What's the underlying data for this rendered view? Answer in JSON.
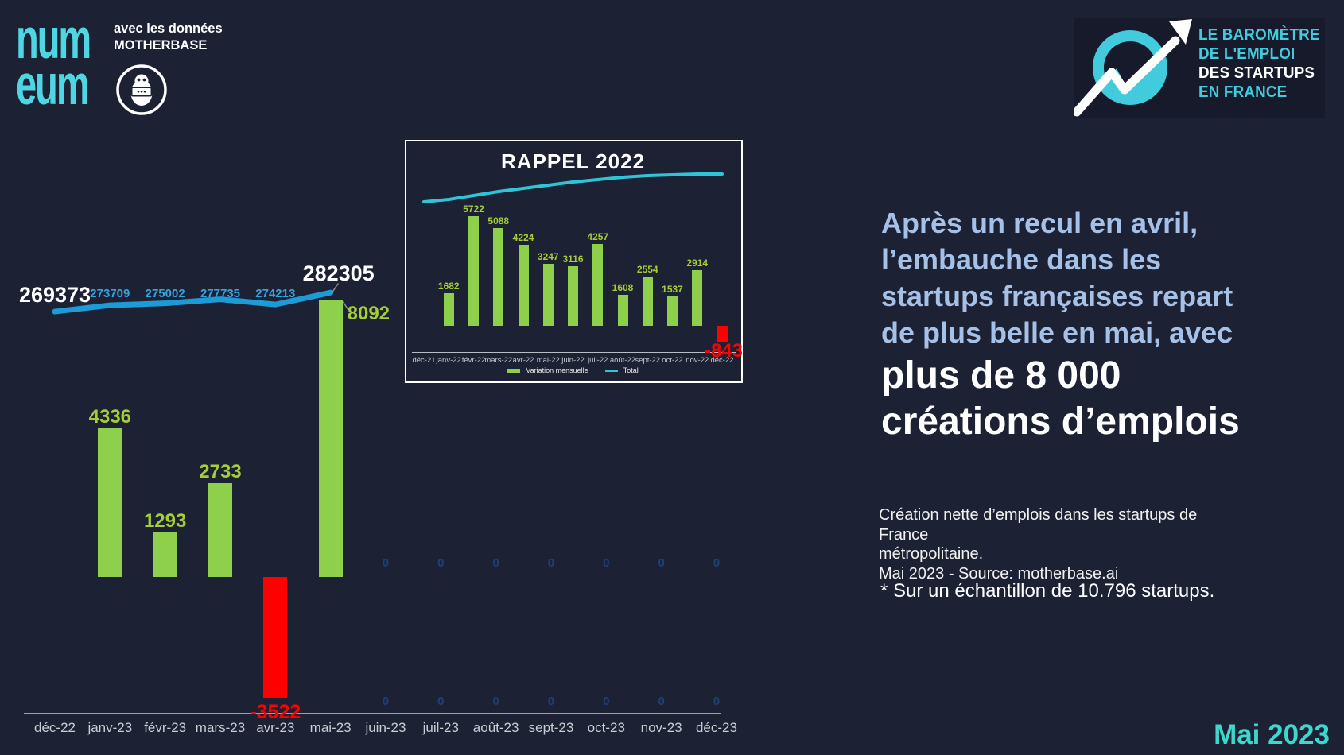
{
  "header": {
    "numeum_logo": {
      "line1": "num",
      "line2": "eum",
      "color": "#4fd6e3"
    },
    "credit_lines": [
      "avec les données",
      "MOTHERBASE"
    ],
    "motherbase_icon": "matryoshka-robot-in-circle",
    "barometer_logo": {
      "icon": "trend-arrow-circle",
      "lines": [
        "LE BAROMÈTRE",
        "DE L'EMPLOI",
        "DES STARTUPS",
        "EN FRANCE"
      ],
      "cyan": "#41cbdc"
    }
  },
  "headline": {
    "light_lines": [
      "Après un recul en avril,",
      "l’embauche dans les",
      "startups françaises repart",
      "de plus belle en mai, avec"
    ],
    "strong_lines": [
      "plus de 8 000",
      "créations d’emplois"
    ],
    "light_color": "#a6c1e8"
  },
  "notes": {
    "source_lines": [
      "Création nette d’emplois dans les startups de France",
      "métropolitaine.",
      "Mai 2023 - Source: motherbase.ai"
    ],
    "sample": "* Sur un échantillon de 10.796 startups."
  },
  "footer": {
    "date": "Mai 2023",
    "color": "#3fd7cd"
  },
  "chart_data": [
    {
      "id": "main-2023",
      "type": "bar+line",
      "categories": [
        "déc-22",
        "janv-23",
        "févr-23",
        "mars-23",
        "avr-23",
        "mai-23",
        "juin-23",
        "juil-23",
        "août-23",
        "sept-23",
        "oct-23",
        "nov-23",
        "déc-23"
      ],
      "series": [
        {
          "name": "Variation mensuelle",
          "type": "bar",
          "values": [
            null,
            4336,
            1293,
            2733,
            -3522,
            8092,
            0,
            0,
            0,
            0,
            0,
            0,
            0
          ]
        },
        {
          "name": "Total",
          "type": "line",
          "values": [
            269373,
            273709,
            275002,
            277735,
            274213,
            282305,
            0,
            0,
            0,
            0,
            0,
            0,
            0
          ]
        }
      ],
      "colors": {
        "bar_positive": "#8ed04b",
        "bar_negative": "#ff0000",
        "line": "#1e9ad6",
        "bar_label": "#a4ce37",
        "line_label": "#35a3e0",
        "line_label_emphasis": "#ffffff",
        "zero_label": "#1e4079",
        "axis": "#9aa0a8",
        "month_label": "#c9cdd4"
      },
      "legend_visible": false,
      "grid": false
    },
    {
      "id": "rappel-2022",
      "title": "RAPPEL 2022",
      "type": "bar+line",
      "categories": [
        "déc-21",
        "janv-22",
        "févr-22",
        "mars-22",
        "avr-22",
        "mai-22",
        "juin-22",
        "juil-22",
        "août-22",
        "sept-22",
        "oct-22",
        "nov-22",
        "déc-22"
      ],
      "series": [
        {
          "name": "Variation mensuelle",
          "type": "bar",
          "values": [
            null,
            1682,
            5722,
            5088,
            4224,
            3247,
            3116,
            4257,
            1608,
            2554,
            1537,
            2914,
            -843
          ]
        },
        {
          "name": "Total",
          "type": "line",
          "labels_visible": false
        }
      ],
      "legend": [
        {
          "label": "Variation mensuelle",
          "swatch": "#8ed04b"
        },
        {
          "label": "Total",
          "swatch": "#2fc5d6"
        }
      ],
      "grid": false
    }
  ]
}
